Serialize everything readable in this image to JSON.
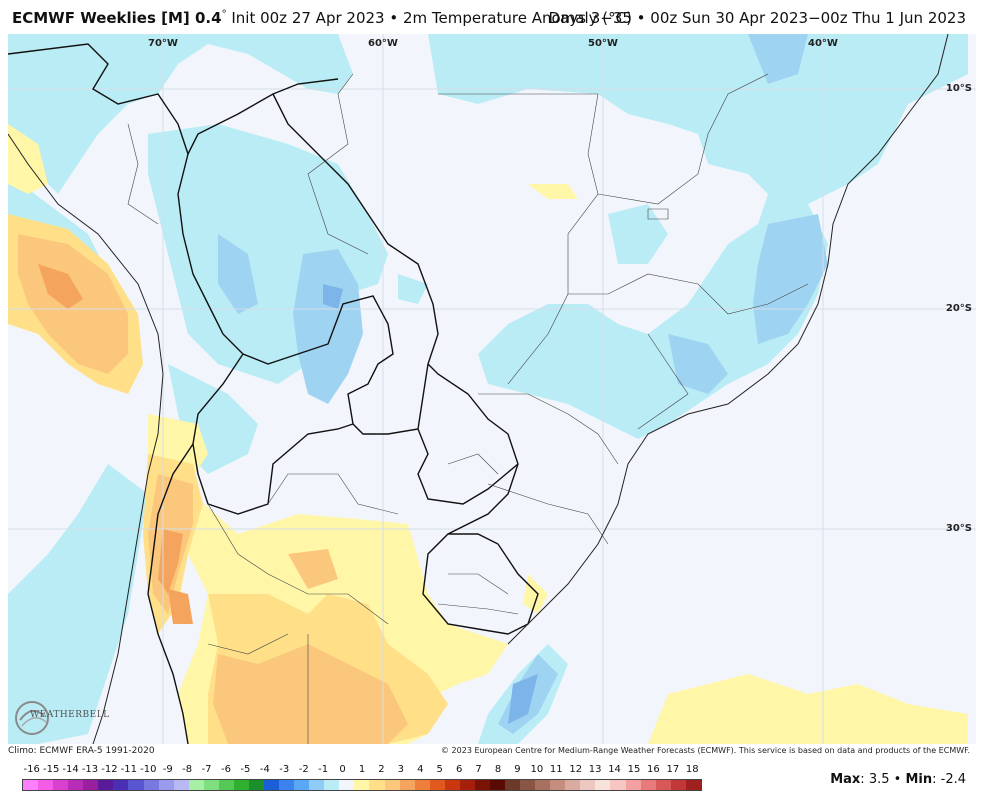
{
  "header": {
    "model": "ECMWF Weeklies [M] 0.4",
    "degree": "°",
    "init": " Init 00z 27 Apr 2023",
    "bullet": "•",
    "variable": "2m Temperature Anomaly (°C)",
    "period": "Days 3−35 • 00z Sun 30 Apr 2023−00z Thu 1 Jun 2023"
  },
  "map": {
    "longitude_labels": [
      "70°W",
      "60°W",
      "50°W",
      "40°W"
    ],
    "latitude_labels": [
      "10°S",
      "20°S",
      "30°S"
    ],
    "colors": {
      "background": "#f2f6fc",
      "light_blue": "#b9ecf5",
      "mid_blue": "#9fd3f2",
      "blue": "#7db4ea",
      "light_yellow": "#fff6a8",
      "yellow": "#ffe089",
      "orange": "#fbc77c",
      "dark_orange": "#f5a45d",
      "border": "#111111",
      "state_border": "#333333"
    }
  },
  "logo": {
    "text": "WEATHERBELL",
    "icon": "weatherbell-swirl-icon"
  },
  "footer": {
    "climo": "Climo: ECMWF ERA-5 1991-2020",
    "copyright": "© 2023 European Centre for Medium-Range Weather Forecasts (ECMWF). This service is based on data and products of the ECMWF."
  },
  "legend": {
    "ticks": [
      "-16",
      "-15",
      "-14",
      "-13",
      "-12",
      "-11",
      "-10",
      "-9",
      "-8",
      "-7",
      "-6",
      "-5",
      "-4",
      "-3",
      "-2",
      "-1",
      "0",
      "1",
      "2",
      "3",
      "4",
      "5",
      "6",
      "7",
      "8",
      "9",
      "10",
      "11",
      "12",
      "13",
      "14",
      "15",
      "16",
      "17",
      "18"
    ],
    "colors": [
      "#ff80ff",
      "#f25ce6",
      "#d940d0",
      "#b82db8",
      "#9a1f9e",
      "#5a1a9a",
      "#4a2fb5",
      "#5a55d0",
      "#7878e0",
      "#9a9aee",
      "#b8b8f5",
      "#a6f0a6",
      "#7fdf7f",
      "#55c855",
      "#2fb02f",
      "#1a8f2a",
      "#1a5fd8",
      "#3c82ee",
      "#5aa8f5",
      "#8fcbf7",
      "#b9ecf5",
      "#f2f6fc",
      "#fff6a8",
      "#ffe089",
      "#fbc77c",
      "#f5a45d",
      "#ee7f3a",
      "#e0591f",
      "#c9360f",
      "#a51f0a",
      "#7a1205",
      "#5a0a02",
      "#6b3a2a",
      "#8a5544",
      "#a8705f",
      "#c48d7e",
      "#d9aaa0",
      "#ecc8c0",
      "#f7e2dc",
      "#f7c6c0",
      "#f2a0a0",
      "#e87a7a",
      "#d85858",
      "#c23838",
      "#a01f1f"
    ],
    "max_label": "Max",
    "max_value": "3.5",
    "min_label": "Min",
    "min_value": "-2.4",
    "separator": "•"
  }
}
